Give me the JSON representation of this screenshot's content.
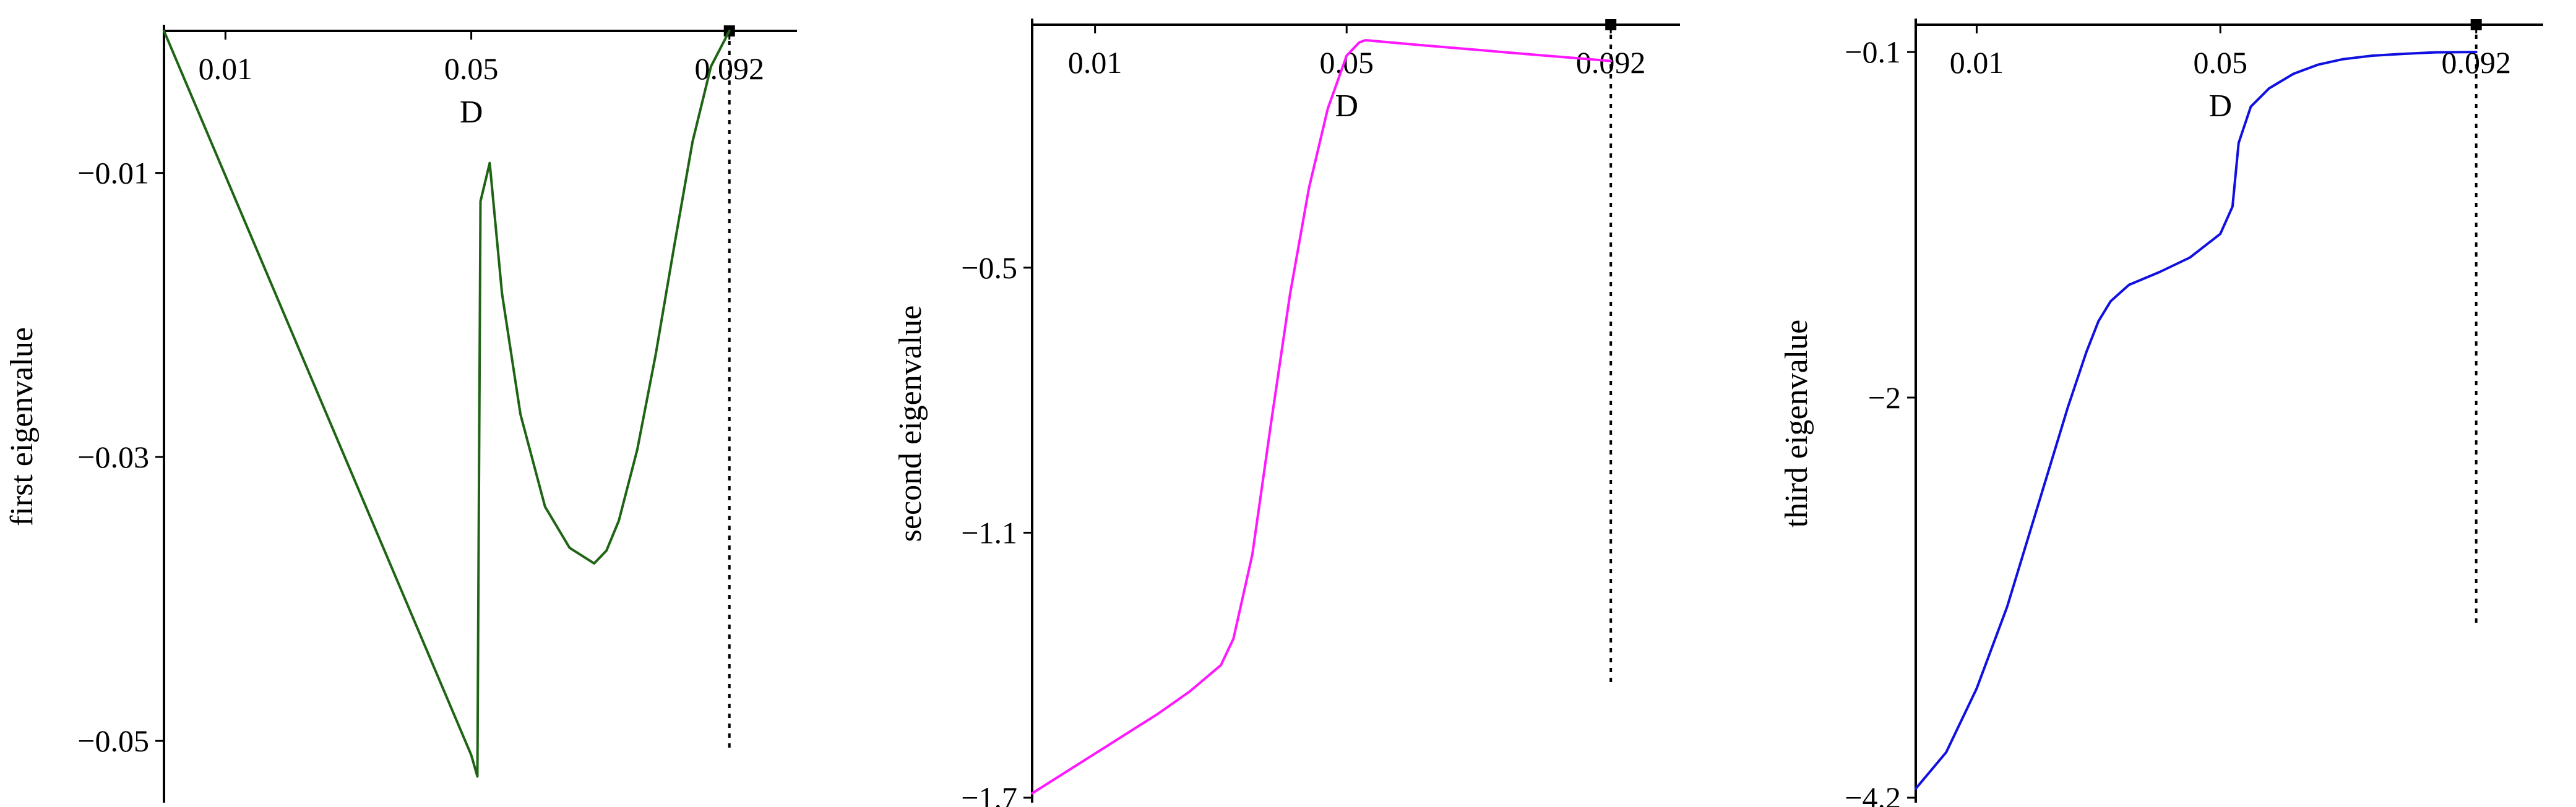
{
  "chart_data": [
    {
      "type": "line",
      "title": "",
      "xlabel": "D",
      "ylabel": "first eigenvalue",
      "xlim": [
        0.0,
        0.103
      ],
      "ylim": [
        -0.054,
        0.0
      ],
      "x_ticks": [
        0.01,
        0.05,
        0.092
      ],
      "x_tick_labels": [
        "0.01",
        "0.05",
        "0.092"
      ],
      "y_ticks": [
        -0.01,
        -0.03,
        -0.05
      ],
      "y_tick_labels": [
        "−0.01",
        "−0.03",
        "−0.05"
      ],
      "marker_x": 0.092,
      "marker_ybottom": -0.0505,
      "color": "#1e6414",
      "grid": false,
      "series": [
        {
          "x": [
            0.0,
            0.01,
            0.02,
            0.03,
            0.04,
            0.05,
            0.051,
            0.0515,
            0.053,
            0.055,
            0.058,
            0.062,
            0.066,
            0.07,
            0.072,
            0.074,
            0.077,
            0.08,
            0.083,
            0.086,
            0.089,
            0.092
          ],
          "y": [
            0.0,
            -0.0102,
            -0.0204,
            -0.0306,
            -0.0408,
            -0.051,
            -0.0525,
            -0.012,
            -0.0093,
            -0.0185,
            -0.027,
            -0.0335,
            -0.0364,
            -0.0375,
            -0.0366,
            -0.0345,
            -0.0295,
            -0.0228,
            -0.0152,
            -0.0078,
            -0.0025,
            0.0
          ]
        }
      ]
    },
    {
      "type": "line",
      "title": "",
      "xlabel": "D",
      "ylabel": "second eigenvalue",
      "xlim": [
        0.0,
        0.103
      ],
      "ylim": [
        -1.7,
        0.05
      ],
      "x_ticks": [
        0.01,
        0.05,
        0.092
      ],
      "x_tick_labels": [
        "0.01",
        "0.05",
        "0.092"
      ],
      "y_ticks": [
        -0.5,
        -1.1,
        -1.7
      ],
      "y_tick_labels": [
        "−0.5",
        "−1.1",
        "−1.7"
      ],
      "marker_x": 0.092,
      "marker_ybottom": -1.45,
      "color": "#ff17ff",
      "grid": false,
      "series": [
        {
          "x": [
            0.0,
            0.01,
            0.02,
            0.025,
            0.03,
            0.032,
            0.035,
            0.038,
            0.041,
            0.044,
            0.047,
            0.05,
            0.052,
            0.053,
            0.06,
            0.07,
            0.08,
            0.092
          ],
          "y": [
            -1.69,
            -1.6,
            -1.51,
            -1.46,
            -1.4,
            -1.34,
            -1.15,
            -0.85,
            -0.56,
            -0.32,
            -0.14,
            -0.02,
            0.01,
            0.015,
            0.006,
            -0.006,
            -0.018,
            -0.032
          ]
        }
      ]
    },
    {
      "type": "line",
      "title": "",
      "xlabel": "D",
      "ylabel": "third eigenvalue",
      "xlim": [
        0.0,
        0.103
      ],
      "ylim": [
        -4.2,
        0.05
      ],
      "x_ticks": [
        0.01,
        0.05,
        0.092
      ],
      "x_tick_labels": [
        "0.01",
        "0.05",
        "0.092"
      ],
      "y_ticks": [
        -0.1,
        -2,
        -4.2
      ],
      "y_tick_labels": [
        "−0.1",
        "−2",
        "−4.2"
      ],
      "marker_x": 0.092,
      "marker_ybottom": -3.25,
      "color": "#1010e0",
      "grid": false,
      "series": [
        {
          "x": [
            0.0,
            0.005,
            0.01,
            0.015,
            0.02,
            0.025,
            0.028,
            0.03,
            0.032,
            0.035,
            0.04,
            0.045,
            0.05,
            0.052,
            0.053,
            0.0535,
            0.055,
            0.058,
            0.062,
            0.066,
            0.07,
            0.075,
            0.08,
            0.085,
            0.092
          ],
          "y": [
            -4.15,
            -3.95,
            -3.6,
            -3.15,
            -2.6,
            -2.05,
            -1.75,
            -1.58,
            -1.47,
            -1.38,
            -1.31,
            -1.23,
            -1.1,
            -0.95,
            -0.6,
            -0.55,
            -0.4,
            -0.3,
            -0.22,
            -0.17,
            -0.14,
            -0.12,
            -0.11,
            -0.102,
            -0.1
          ]
        }
      ]
    }
  ]
}
